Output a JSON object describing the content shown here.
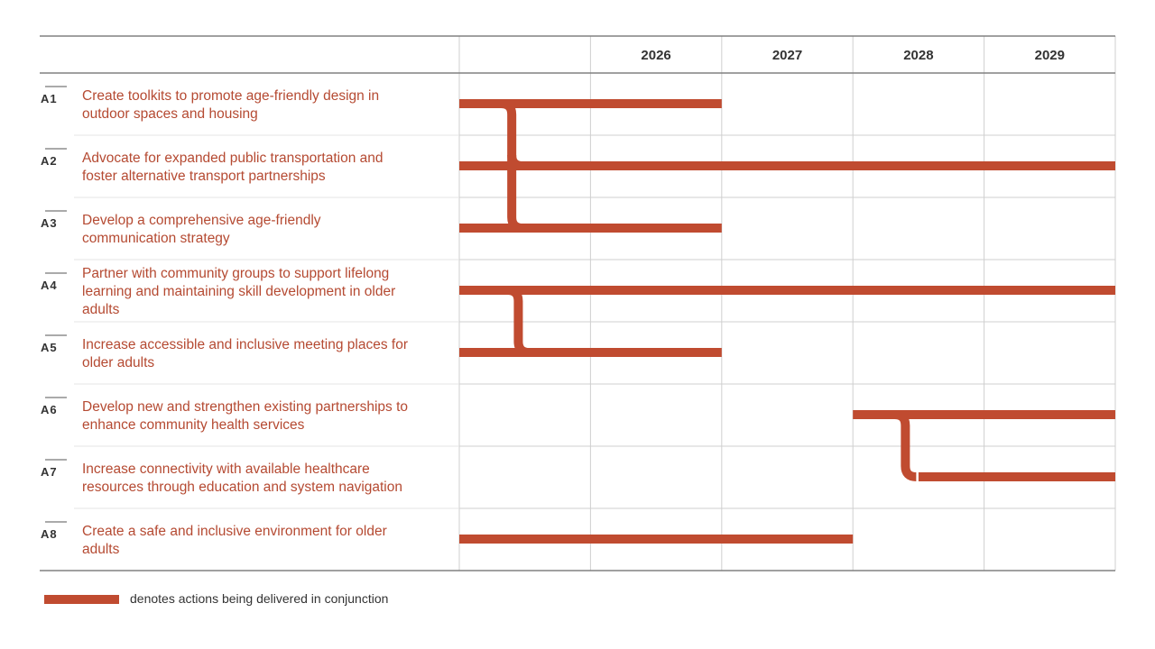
{
  "colors": {
    "bar": "#c04b30",
    "text_red": "#b54a32",
    "text_dark": "#333333",
    "grid": "#cfcfcf",
    "frame": "#808080"
  },
  "years": [
    "",
    "2026",
    "2027",
    "2028",
    "2029"
  ],
  "actions": [
    {
      "code": "A1",
      "lines": [
        "Create toolkits to promote age-friendly design in",
        "outdoor spaces and housing"
      ],
      "start": 0,
      "end": 2
    },
    {
      "code": "A2",
      "lines": [
        "Advocate for expanded public transportation and",
        "foster alternative transport partnerships"
      ],
      "start": 0,
      "end": 5
    },
    {
      "code": "A3",
      "lines": [
        "Develop a comprehensive age-friendly",
        "communication strategy"
      ],
      "start": 0,
      "end": 2
    },
    {
      "code": "A4",
      "lines": [
        "Partner with community groups to support lifelong",
        "learning and maintaining skill development in older",
        "adults"
      ],
      "start": 0,
      "end": 5
    },
    {
      "code": "A5",
      "lines": [
        "Increase accessible and inclusive meeting places for",
        "older adults"
      ],
      "start": 0,
      "end": 2
    },
    {
      "code": "A6",
      "lines": [
        "Develop new and strengthen existing partnerships to",
        "enhance community health services"
      ],
      "start": 3,
      "end": 5
    },
    {
      "code": "A7",
      "lines": [
        "Increase connectivity with available healthcare",
        "resources through education and system navigation"
      ],
      "start": 3.5,
      "end": 5
    },
    {
      "code": "A8",
      "lines": [
        "Create a safe and inclusive environment for older",
        "adults"
      ],
      "start": 0,
      "end": 3
    }
  ],
  "connectors": [
    {
      "rows": [
        0,
        1,
        2
      ],
      "at": 0.4
    },
    {
      "rows": [
        3,
        4
      ],
      "at": 0.45
    },
    {
      "rows": [
        5,
        6
      ],
      "at": 3.4
    }
  ],
  "legend": {
    "text": "denotes actions being delivered in conjunction"
  }
}
